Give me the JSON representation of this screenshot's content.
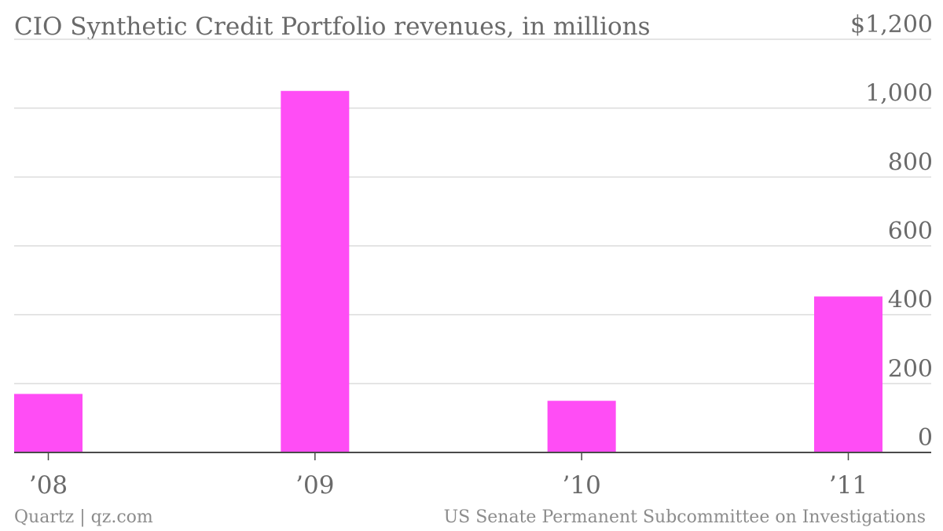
{
  "footer": {
    "credit": "Quartz | qz.com",
    "source": "US Senate Permanent Subcommittee on Investigations"
  },
  "chart_data": {
    "type": "bar",
    "title": "CIO Synthetic Credit Portfolio revenues, in millions",
    "xlabel": "",
    "ylabel": "",
    "categories": [
      "’08",
      "’09",
      "’10",
      "’11"
    ],
    "values": [
      170,
      1050,
      150,
      453
    ],
    "ylim": [
      0,
      1200
    ],
    "y_ticks": [
      0,
      200,
      400,
      600,
      800,
      1000,
      1200
    ],
    "y_tick_labels": [
      "0",
      "200",
      "400",
      "600",
      "800",
      "1,000",
      "$1,200"
    ],
    "y_axis_side": "right",
    "grid": true,
    "legend": "none",
    "bar_color": "#ff4df5",
    "gridline_color": "#dcdcdc",
    "axis_color": "#4a4a4a",
    "text_color": "#6a6a6a"
  }
}
